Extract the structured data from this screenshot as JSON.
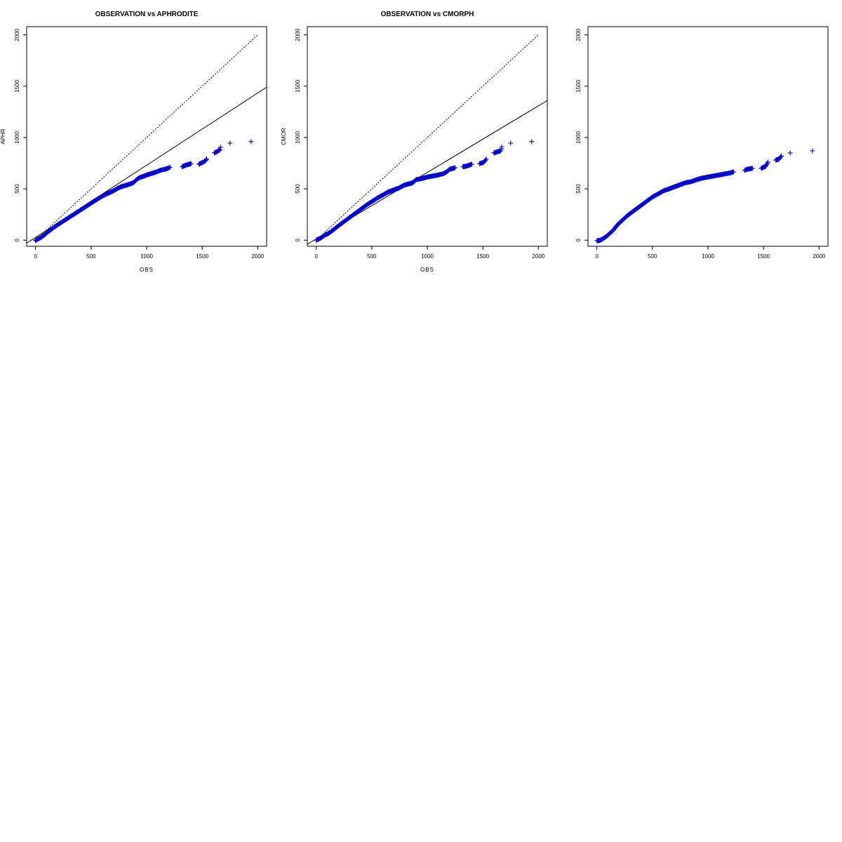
{
  "chart_data": [
    {
      "type": "scatter",
      "title": "OBSERVATION vs APHRODITE",
      "xlabel": "OBS",
      "ylabel": "APHR",
      "xlim": [
        -80,
        2080
      ],
      "ylim": [
        -60,
        2080
      ],
      "xticks": [
        "0",
        "500",
        "1000",
        "1500",
        "2000"
      ],
      "yticks": [
        "0",
        "500",
        "1000",
        "1500",
        "2000"
      ],
      "marker_color": "#0000cc",
      "reference_lines": [
        {
          "style": "dotted",
          "points": [
            [
              0,
              0
            ],
            [
              2000,
              2000
            ]
          ]
        },
        {
          "style": "solid",
          "points": [
            [
              -80,
              -30
            ],
            [
              2080,
              1490
            ]
          ]
        }
      ],
      "series": [
        {
          "x": [
            0,
            10,
            20,
            40,
            60,
            80,
            100,
            130,
            160,
            200,
            250,
            300,
            350,
            400,
            450,
            500,
            550,
            580,
            620,
            660,
            700,
            740,
            770,
            800,
            830,
            860,
            880,
            900,
            920,
            950,
            980,
            1000,
            1030,
            1060,
            1090,
            1110,
            1130,
            1150,
            1170,
            1190,
            1210,
            1320,
            1350,
            1400,
            1470,
            1510,
            1530,
            1540,
            1610,
            1630,
            1660,
            1665,
            1750,
            1940
          ],
          "y": [
            -5,
            5,
            10,
            20,
            35,
            50,
            70,
            95,
            120,
            150,
            185,
            220,
            255,
            290,
            325,
            360,
            395,
            415,
            440,
            460,
            480,
            505,
            520,
            530,
            540,
            550,
            560,
            580,
            600,
            615,
            625,
            635,
            645,
            655,
            665,
            675,
            682,
            688,
            692,
            700,
            710,
            715,
            730,
            745,
            740,
            760,
            775,
            790,
            850,
            860,
            880,
            905,
            945,
            960
          ]
        }
      ]
    },
    {
      "type": "scatter",
      "title": "OBSERVATION vs CMORPH",
      "xlabel": "OBS",
      "ylabel": "CMOR",
      "xlim": [
        -80,
        2080
      ],
      "ylim": [
        -60,
        2080
      ],
      "xticks": [
        "0",
        "500",
        "1000",
        "1500",
        "2000"
      ],
      "yticks": [
        "0",
        "500",
        "1000",
        "1500",
        "2000"
      ],
      "marker_color": "#0000cc",
      "reference_lines": [
        {
          "style": "dotted",
          "points": [
            [
              0,
              0
            ],
            [
              2000,
              2000
            ]
          ]
        },
        {
          "style": "solid",
          "points": [
            [
              -80,
              -40
            ],
            [
              2080,
              1360
            ]
          ]
        }
      ],
      "series": [
        {
          "x": [
            0,
            10,
            20,
            40,
            60,
            80,
            100,
            130,
            160,
            200,
            250,
            300,
            350,
            400,
            450,
            500,
            550,
            600,
            650,
            700,
            750,
            780,
            820,
            860,
            880,
            900,
            950,
            1000,
            1050,
            1100,
            1150,
            1180,
            1200,
            1250,
            1320,
            1350,
            1400,
            1470,
            1510,
            1530,
            1600,
            1630,
            1660,
            1670,
            1750,
            1940
          ],
          "y": [
            0,
            5,
            10,
            20,
            35,
            50,
            60,
            80,
            105,
            140,
            180,
            220,
            260,
            300,
            340,
            375,
            410,
            440,
            470,
            490,
            510,
            530,
            545,
            555,
            570,
            590,
            600,
            615,
            625,
            635,
            650,
            670,
            690,
            705,
            715,
            720,
            740,
            745,
            760,
            790,
            850,
            860,
            870,
            910,
            945,
            960
          ]
        }
      ]
    },
    {
      "type": "scatter",
      "title": "",
      "xlabel": "",
      "ylabel": "",
      "xlim": [
        -80,
        2080
      ],
      "ylim": [
        -60,
        2080
      ],
      "xticks": [
        "0",
        "500",
        "1000",
        "1500",
        "2000"
      ],
      "yticks": [
        "0",
        "500",
        "1000",
        "1500",
        "2000"
      ],
      "marker_color": "#0000cc",
      "reference_lines": [],
      "series": [
        {
          "x": [
            0,
            10,
            20,
            30,
            50,
            70,
            90,
            110,
            130,
            150,
            170,
            200,
            230,
            260,
            300,
            350,
            400,
            450,
            500,
            550,
            600,
            650,
            700,
            750,
            800,
            850,
            900,
            950,
            1000,
            1050,
            1100,
            1150,
            1200,
            1230,
            1330,
            1350,
            1400,
            1480,
            1520,
            1540,
            1610,
            1640,
            1660,
            1740,
            1940
          ],
          "y": [
            -5,
            -5,
            -5,
            0,
            10,
            25,
            40,
            60,
            80,
            100,
            130,
            165,
            195,
            225,
            260,
            300,
            340,
            380,
            420,
            450,
            480,
            500,
            520,
            540,
            560,
            570,
            590,
            605,
            615,
            625,
            635,
            645,
            655,
            665,
            680,
            690,
            700,
            700,
            720,
            760,
            780,
            790,
            820,
            850,
            870
          ]
        }
      ]
    }
  ]
}
